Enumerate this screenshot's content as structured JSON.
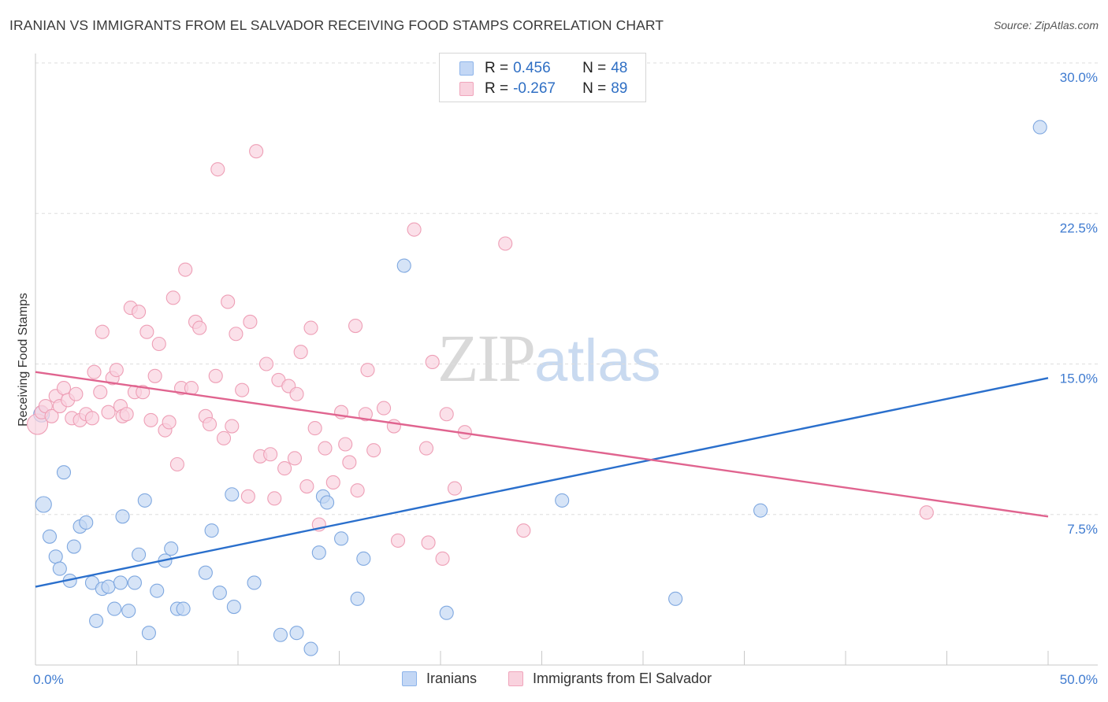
{
  "title": "IRANIAN VS IMMIGRANTS FROM EL SALVADOR RECEIVING FOOD STAMPS CORRELATION CHART",
  "source": "Source: ZipAtlas.com",
  "watermark": {
    "zip": "ZIP",
    "atlas": "atlas"
  },
  "legend_top": [
    {
      "r_label": "R =",
      "r_value": "0.456",
      "n_label": "N =",
      "n_value": "48",
      "color": "#8db4ea",
      "fill": "#c3d7f5"
    },
    {
      "r_label": "R =",
      "r_value": "-0.267",
      "n_label": "N =",
      "n_value": "89",
      "color": "#f0a5bc",
      "fill": "#f9d2de"
    }
  ],
  "legend_bottom": [
    "Iranians",
    "Immigrants from El Salvador"
  ],
  "colors": {
    "blue_point_fill": "#c5d9f3",
    "blue_point_stroke": "#7fa8e0",
    "blue_line": "#2a6fcc",
    "pink_point_fill": "#f9d3df",
    "pink_point_stroke": "#ee9fb6",
    "pink_line": "#e0648f",
    "axis_tick_text": "#3f7bd0",
    "grid": "#dddddd"
  },
  "chart_data": {
    "type": "scatter",
    "title": "IRANIAN VS IMMIGRANTS FROM EL SALVADOR RECEIVING FOOD STAMPS CORRELATION CHART",
    "xlabel": "",
    "ylabel": "Receiving Food Stamps",
    "xlim": [
      0,
      50
    ],
    "ylim": [
      0,
      30
    ],
    "x_tick_labels": [
      "0.0%",
      "50.0%"
    ],
    "y_ticks": [
      7.5,
      15.0,
      22.5,
      30.0
    ],
    "y_tick_labels": [
      "7.5%",
      "15.0%",
      "22.5%",
      "30.0%"
    ],
    "grid": true,
    "legend_placement": "top-center",
    "series": [
      {
        "name": "Iranians",
        "trend": {
          "x": [
            0,
            50
          ],
          "y": [
            3.9,
            14.3
          ]
        },
        "points": [
          [
            0.3,
            12.5
          ],
          [
            0.4,
            8.0
          ],
          [
            0.7,
            6.4
          ],
          [
            1.0,
            5.4
          ],
          [
            1.2,
            4.8
          ],
          [
            1.4,
            9.6
          ],
          [
            1.7,
            4.2
          ],
          [
            1.9,
            5.9
          ],
          [
            2.2,
            6.9
          ],
          [
            2.5,
            7.1
          ],
          [
            2.8,
            4.1
          ],
          [
            3.0,
            2.2
          ],
          [
            3.3,
            3.8
          ],
          [
            3.6,
            3.9
          ],
          [
            3.9,
            2.8
          ],
          [
            4.2,
            4.1
          ],
          [
            4.3,
            7.4
          ],
          [
            4.6,
            2.7
          ],
          [
            4.9,
            4.1
          ],
          [
            5.1,
            5.5
          ],
          [
            5.4,
            8.2
          ],
          [
            5.6,
            1.6
          ],
          [
            6.0,
            3.7
          ],
          [
            6.4,
            5.2
          ],
          [
            6.7,
            5.8
          ],
          [
            7.0,
            2.8
          ],
          [
            7.3,
            2.8
          ],
          [
            8.4,
            4.6
          ],
          [
            8.7,
            6.7
          ],
          [
            9.1,
            3.6
          ],
          [
            9.7,
            8.5
          ],
          [
            9.8,
            2.9
          ],
          [
            10.8,
            4.1
          ],
          [
            12.1,
            1.5
          ],
          [
            12.9,
            1.6
          ],
          [
            13.6,
            0.8
          ],
          [
            14.0,
            5.6
          ],
          [
            14.2,
            8.4
          ],
          [
            14.4,
            8.1
          ],
          [
            15.1,
            6.3
          ],
          [
            15.9,
            3.3
          ],
          [
            16.2,
            5.3
          ],
          [
            18.2,
            19.9
          ],
          [
            20.3,
            2.6
          ],
          [
            26.0,
            8.2
          ],
          [
            31.6,
            3.3
          ],
          [
            35.8,
            7.7
          ],
          [
            49.6,
            26.8
          ]
        ]
      },
      {
        "name": "Immigrants from El Salvador",
        "trend": {
          "x": [
            0,
            50
          ],
          "y": [
            14.6,
            7.4
          ]
        },
        "points": [
          [
            0.1,
            12.0
          ],
          [
            0.3,
            12.6
          ],
          [
            0.5,
            12.9
          ],
          [
            0.8,
            12.4
          ],
          [
            1.0,
            13.4
          ],
          [
            1.2,
            12.9
          ],
          [
            1.4,
            13.8
          ],
          [
            1.6,
            13.2
          ],
          [
            1.8,
            12.3
          ],
          [
            2.0,
            13.5
          ],
          [
            2.2,
            12.2
          ],
          [
            2.5,
            12.5
          ],
          [
            2.8,
            12.3
          ],
          [
            2.9,
            14.6
          ],
          [
            3.2,
            13.6
          ],
          [
            3.3,
            16.6
          ],
          [
            3.6,
            12.6
          ],
          [
            3.8,
            14.3
          ],
          [
            4.0,
            14.7
          ],
          [
            4.2,
            12.9
          ],
          [
            4.3,
            12.4
          ],
          [
            4.5,
            12.5
          ],
          [
            4.7,
            17.8
          ],
          [
            4.9,
            13.6
          ],
          [
            5.1,
            17.6
          ],
          [
            5.3,
            13.6
          ],
          [
            5.5,
            16.6
          ],
          [
            5.7,
            12.2
          ],
          [
            5.9,
            14.4
          ],
          [
            6.1,
            16.0
          ],
          [
            6.4,
            11.7
          ],
          [
            6.6,
            12.1
          ],
          [
            6.8,
            18.3
          ],
          [
            7.0,
            10.0
          ],
          [
            7.2,
            13.8
          ],
          [
            7.4,
            19.7
          ],
          [
            7.7,
            13.8
          ],
          [
            7.9,
            17.1
          ],
          [
            8.1,
            16.8
          ],
          [
            8.4,
            12.4
          ],
          [
            8.6,
            12.0
          ],
          [
            8.9,
            14.4
          ],
          [
            9.0,
            24.7
          ],
          [
            9.3,
            11.3
          ],
          [
            9.5,
            18.1
          ],
          [
            9.7,
            11.9
          ],
          [
            9.9,
            16.5
          ],
          [
            10.2,
            13.7
          ],
          [
            10.5,
            8.4
          ],
          [
            10.6,
            17.1
          ],
          [
            10.9,
            25.6
          ],
          [
            11.1,
            10.4
          ],
          [
            11.4,
            15.0
          ],
          [
            11.6,
            10.5
          ],
          [
            11.8,
            8.3
          ],
          [
            12.0,
            14.2
          ],
          [
            12.3,
            9.8
          ],
          [
            12.5,
            13.9
          ],
          [
            12.8,
            10.3
          ],
          [
            12.9,
            13.5
          ],
          [
            13.1,
            15.6
          ],
          [
            13.4,
            8.9
          ],
          [
            13.6,
            16.8
          ],
          [
            13.8,
            11.8
          ],
          [
            14.0,
            7.0
          ],
          [
            14.3,
            10.8
          ],
          [
            14.7,
            9.1
          ],
          [
            15.1,
            12.6
          ],
          [
            15.3,
            11.0
          ],
          [
            15.5,
            10.1
          ],
          [
            15.8,
            16.9
          ],
          [
            15.9,
            8.7
          ],
          [
            16.3,
            12.5
          ],
          [
            16.4,
            14.7
          ],
          [
            16.7,
            10.7
          ],
          [
            17.2,
            12.8
          ],
          [
            17.7,
            11.9
          ],
          [
            17.9,
            6.2
          ],
          [
            18.7,
            21.7
          ],
          [
            19.3,
            10.8
          ],
          [
            19.4,
            6.1
          ],
          [
            19.6,
            15.1
          ],
          [
            20.1,
            5.3
          ],
          [
            20.3,
            12.5
          ],
          [
            20.7,
            8.8
          ],
          [
            21.2,
            11.6
          ],
          [
            23.2,
            21.0
          ],
          [
            24.1,
            6.7
          ],
          [
            44.0,
            7.6
          ]
        ]
      }
    ]
  }
}
